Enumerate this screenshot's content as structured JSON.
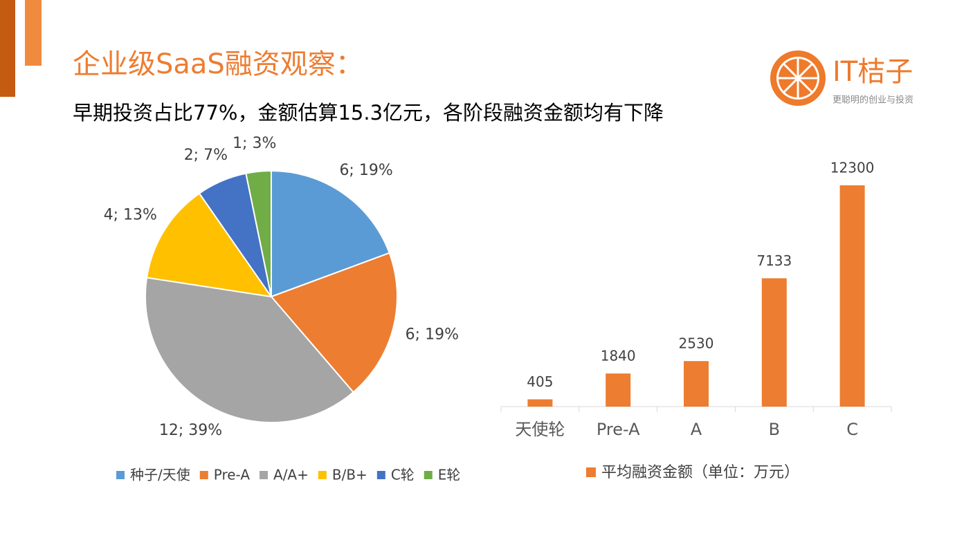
{
  "header": {
    "title": "企业级SaaS融资观察：",
    "subtitle": "早期投资占比77%，金额估算15.3亿元，各阶段融资金额均有下降"
  },
  "logo": {
    "name": "IT桔子",
    "tagline": "更聪明的创业与投资"
  },
  "chart_data": [
    {
      "type": "pie",
      "categories": [
        "种子/天使",
        "Pre-A",
        "A/A+",
        "B/B+",
        "C轮",
        "E轮"
      ],
      "values": [
        6,
        6,
        12,
        4,
        2,
        1
      ],
      "value_labels": [
        "6; 19%",
        "6; 19%",
        "12; 39%",
        "4; 13%",
        "2; 7%",
        "1; 3%"
      ],
      "colors": [
        "#5b9bd5",
        "#ed7d31",
        "#a5a5a5",
        "#ffc000",
        "#4472c4",
        "#70ad47"
      ]
    },
    {
      "type": "bar",
      "categories": [
        "天使轮",
        "Pre-A",
        "A",
        "B",
        "C"
      ],
      "series": [
        {
          "name": "平均融资金额（单位：万元）",
          "color": "#ed7d31",
          "values": [
            405,
            1840,
            2530,
            7133,
            12300
          ]
        }
      ]
    }
  ]
}
